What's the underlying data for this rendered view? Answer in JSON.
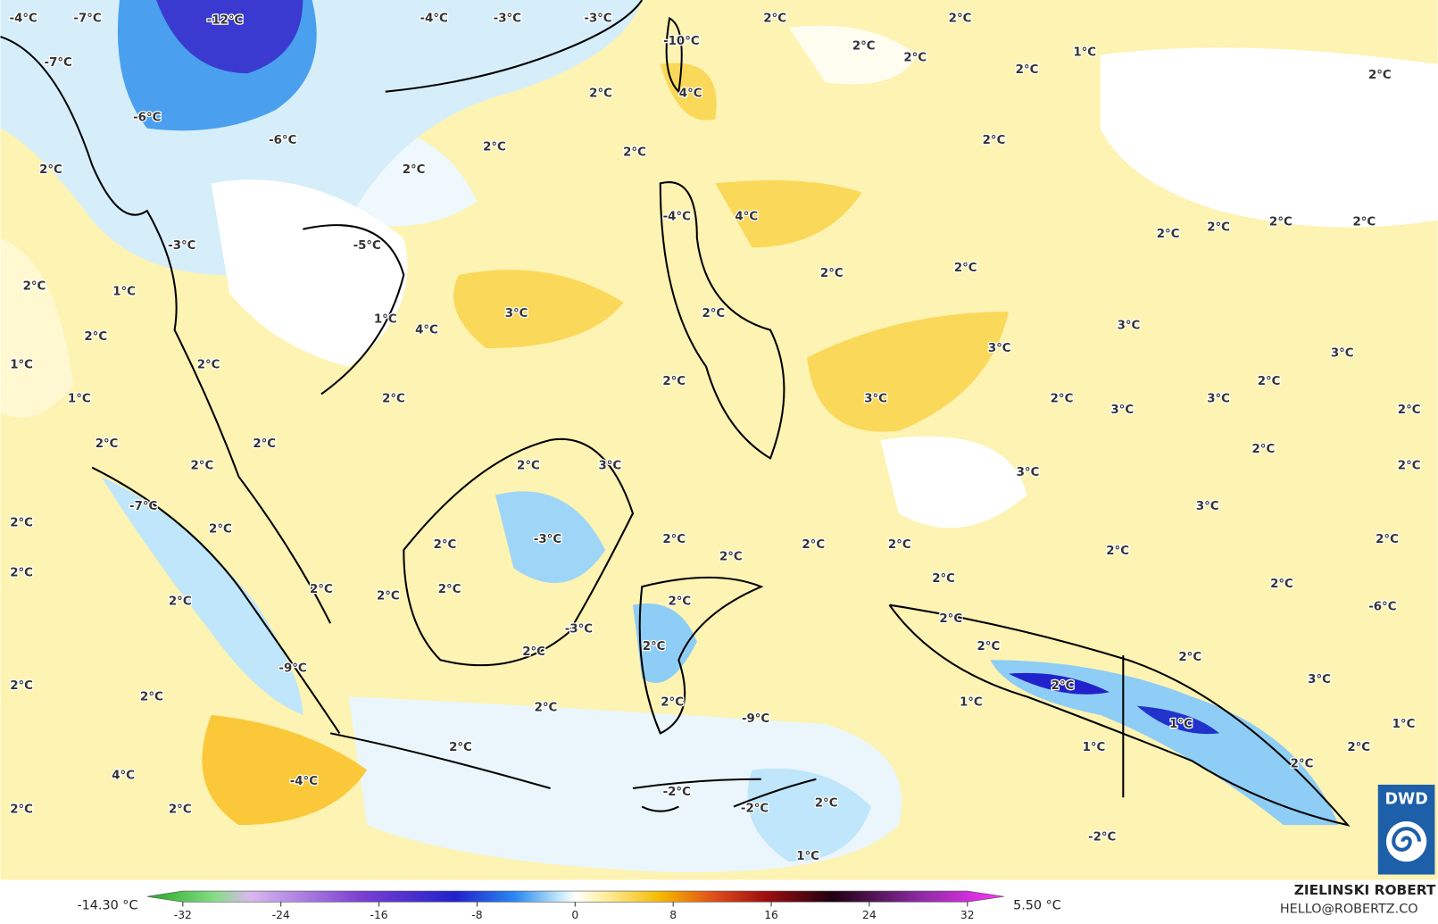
{
  "map": {
    "labels": [
      "-4°C",
      "-7°C",
      "-12°C",
      "-4°C",
      "-3°C",
      "-3°C",
      "2°C",
      "2°C",
      "-10°C",
      "2°C",
      "2°C",
      "1°C",
      "2°C",
      "2°C",
      "-7°C",
      "2°C",
      "4°C",
      "-6°C",
      "-6°C",
      "2°C",
      "2°C",
      "2°C",
      "2°C",
      "2°C",
      "4°C",
      "-4°C",
      "2°C",
      "2°C",
      "2°C",
      "2°C",
      "-3°C",
      "-5°C",
      "2°C",
      "2°C",
      "2°C",
      "1°C",
      "3°C",
      "2°C",
      "1°C",
      "4°C",
      "2°C",
      "3°C",
      "3°C",
      "3°C",
      "1°C",
      "2°C",
      "2°C",
      "2°C",
      "1°C",
      "2°C",
      "3°C",
      "2°C",
      "3°C",
      "3°C",
      "2°C",
      "2°C",
      "2°C",
      "2°C",
      "2°C",
      "3°C",
      "2°C",
      "3°C",
      "2°C",
      "-7°C",
      "3°C",
      "2°C",
      "2°C",
      "-3°C",
      "2°C",
      "2°C",
      "2°C",
      "2°C",
      "2°C",
      "2°C",
      "2°C",
      "2°C",
      "2°C",
      "2°C",
      "2°C",
      "2°C",
      "2°C",
      "2°C",
      "2°C",
      "-3°C",
      "2°C",
      "-6°C",
      "2°C",
      "2°C",
      "2°C",
      "2°C",
      "-9°C",
      "2°C",
      "3°C",
      "2°C",
      "2°C",
      "2°C",
      "2°C",
      "1°C",
      "-9°C",
      "1°C",
      "1°C",
      "2°C",
      "1°C",
      "2°C",
      "2°C",
      "4°C",
      "-4°C",
      "-2°C",
      "-2°C",
      "2°C",
      "2°C",
      "2°C",
      "-2°C",
      "1°C"
    ],
    "colorbar": {
      "ticks": [
        -32,
        -24,
        -16,
        -8,
        0,
        8,
        16,
        24,
        32
      ],
      "min_label": "-14.30 °C",
      "max_label": "5.50 °C"
    },
    "credit": {
      "name": "ZIELINSKI ROBERT",
      "contact": "HELLO@ROBERTZ.CO"
    },
    "logo": "DWD"
  }
}
